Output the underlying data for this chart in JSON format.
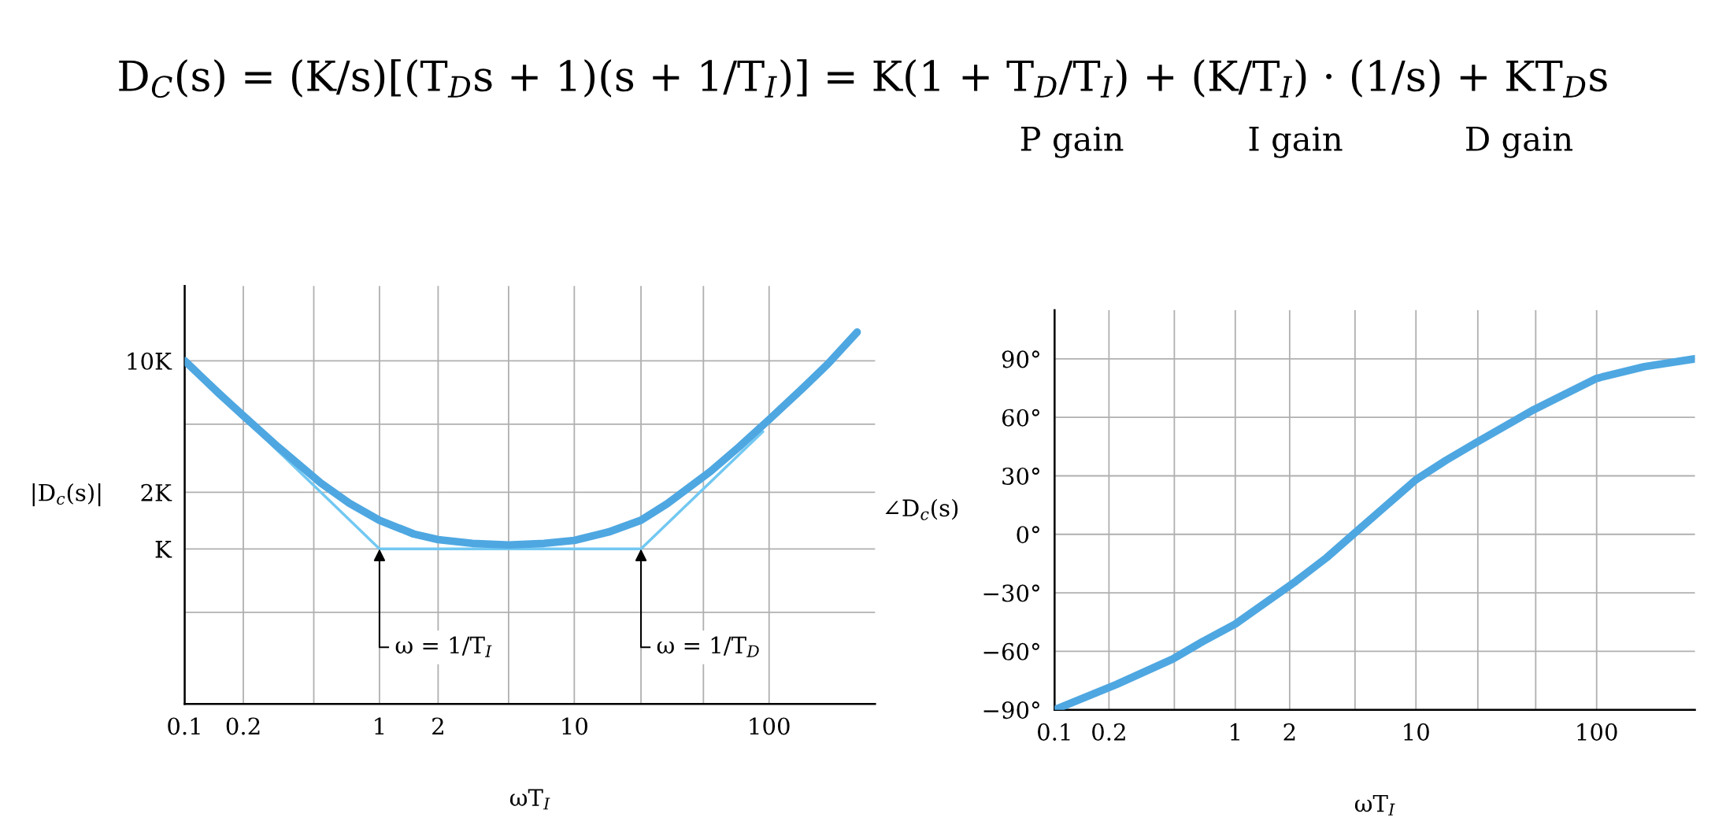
{
  "chart_data": [
    {
      "type": "line",
      "title": "D$_{C}$(s) = (K/s)[(T$_{D}$s + 1)(s + 1/T$_{I}$)] = K(1 + T$_{D}$/T$_{I}$) + (K/T$_{I}$) · (1/s) + KT$_{D}$s",
      "xlabel": "ωT$_{I}$",
      "ylabel": "|D$_{c}$(s)|",
      "log": "xy",
      "grid": true,
      "xlim": [
        0.1,
        350
      ],
      "ylim": [
        0.15,
        25
      ],
      "xticks": [
        0.1,
        0.2,
        {
          "value": 0.46,
          "label": null
        },
        1,
        2,
        {
          "value": 4.6,
          "label": null
        },
        10,
        {
          "value": 22,
          "label": null
        },
        {
          "value": 46,
          "label": null
        },
        100
      ],
      "yticks": [
        {
          "value": 0.46,
          "label": null
        },
        {
          "value": 1,
          "label": "K"
        },
        {
          "value": 2,
          "label": "2K"
        },
        {
          "value": 4.6,
          "label": null
        },
        {
          "value": 10,
          "label": "10K"
        }
      ],
      "series": [
        {
          "color": "#4ea7e1",
          "x": [
            0.1,
            0.15,
            0.2,
            0.3,
            0.5,
            0.7,
            1,
            1.5,
            2,
            3,
            4.6,
            7,
            10,
            15,
            22,
            30,
            50,
            70,
            100,
            150,
            200,
            283
          ],
          "values": [
            10,
            6.7,
            5.1,
            3.5,
            2.24,
            1.75,
            1.42,
            1.2,
            1.12,
            1.07,
            1.05,
            1.07,
            1.11,
            1.23,
            1.42,
            1.74,
            2.58,
            3.48,
            4.87,
            7.2,
            9.6,
            14.2
          ]
        },
        {
          "color": "#72c8f2",
          "x": [
            0.1,
            1,
            22,
            93
          ],
          "values": [
            10,
            1,
            1,
            4.2
          ]
        }
      ],
      "annotations": [
        {
          "text": "ω = 1/T$_{I}$",
          "x": 1,
          "y": 1
        },
        {
          "text": "ω = 1/T$_{D}$",
          "x": 22,
          "y": 1
        },
        "P gain",
        "I gain",
        "D gain"
      ]
    },
    {
      "type": "line",
      "xlabel": "ωT$_{I}$",
      "ylabel": "∠D$_{c}$(s)",
      "log": "x",
      "grid": true,
      "xlim": [
        0.1,
        350
      ],
      "ylim": [
        -90,
        115
      ],
      "xticks": [
        0.1,
        0.2,
        {
          "value": 0.46,
          "label": null
        },
        1,
        2,
        {
          "value": 4.6,
          "label": null
        },
        10,
        {
          "value": 22,
          "label": null
        },
        {
          "value": 46,
          "label": null
        },
        100
      ],
      "yticks": [
        {
          "value": -90,
          "label": "−90°"
        },
        {
          "value": -60,
          "label": "−60°"
        },
        {
          "value": -30,
          "label": "−30°"
        },
        {
          "value": 0,
          "label": "0°"
        },
        {
          "value": 30,
          "label": "30°"
        },
        {
          "value": 60,
          "label": "60°"
        },
        {
          "value": 90,
          "label": "90°"
        }
      ],
      "series": [
        {
          "color": "#4ea7e1",
          "x": [
            0.1,
            0.22,
            0.45,
            0.66,
            1,
            2.17,
            3.2,
            4.5,
            6.7,
            10,
            14.7,
            21.5,
            45,
            100,
            184,
            349
          ],
          "values": [
            -90,
            -77,
            -64,
            -55,
            -46,
            -24,
            -12,
            0,
            14,
            28,
            38,
            47,
            64,
            80,
            86,
            90
          ]
        }
      ]
    }
  ]
}
